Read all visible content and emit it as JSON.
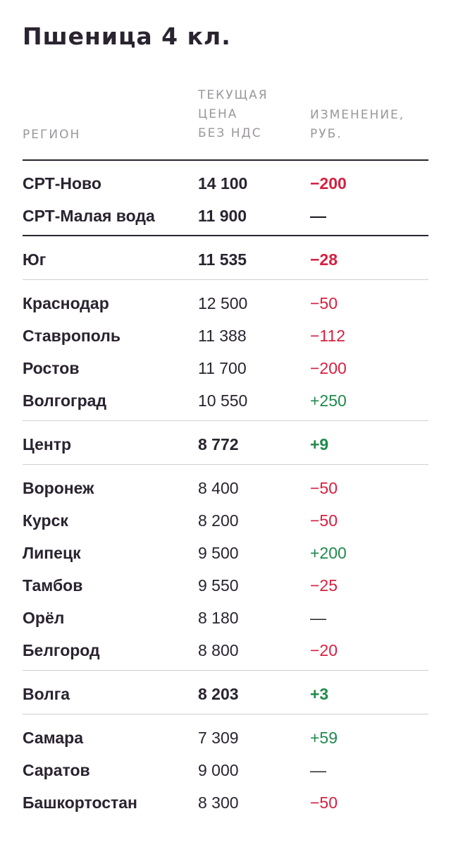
{
  "title": "Пшеница 4 кл.",
  "columns": {
    "region": "РЕГИОН",
    "price_lines": [
      "ТЕКУЩАЯ",
      "ЦЕНА",
      "БЕЗ НДС"
    ],
    "change_lines": [
      "ИЗМЕНЕНИЕ,",
      "РУБ."
    ]
  },
  "rows": [
    {
      "region": "СРТ-Ново",
      "price": "14 100",
      "change": "−200",
      "summary": true,
      "trend": "neg"
    },
    {
      "region": "СРТ-Малая вода",
      "price": "11 900",
      "change": "—",
      "summary": true,
      "trend": "neutral"
    },
    {
      "region": "Юг",
      "price": "11 535",
      "change": "−28",
      "summary": true,
      "trend": "neg"
    },
    {
      "region": "Краснодар",
      "price": "12 500",
      "change": "−50",
      "summary": false,
      "trend": "neg"
    },
    {
      "region": "Ставрополь",
      "price": "11 388",
      "change": "−112",
      "summary": false,
      "trend": "neg"
    },
    {
      "region": "Ростов",
      "price": "11 700",
      "change": "−200",
      "summary": false,
      "trend": "neg"
    },
    {
      "region": "Волгоград",
      "price": "10 550",
      "change": "+250",
      "summary": false,
      "trend": "pos"
    },
    {
      "region": "Центр",
      "price": "8 772",
      "change": "+9",
      "summary": true,
      "trend": "pos"
    },
    {
      "region": "Воронеж",
      "price": "8 400",
      "change": "−50",
      "summary": false,
      "trend": "neg"
    },
    {
      "region": "Курск",
      "price": "8 200",
      "change": "−50",
      "summary": false,
      "trend": "neg"
    },
    {
      "region": "Липецк",
      "price": "9 500",
      "change": "+200",
      "summary": false,
      "trend": "pos"
    },
    {
      "region": "Тамбов",
      "price": "9 550",
      "change": "−25",
      "summary": false,
      "trend": "neg"
    },
    {
      "region": "Орёл",
      "price": "8 180",
      "change": "—",
      "summary": false,
      "trend": "neutral"
    },
    {
      "region": "Белгород",
      "price": "8 800",
      "change": "−20",
      "summary": false,
      "trend": "neg"
    },
    {
      "region": "Волга",
      "price": "8 203",
      "change": "+3",
      "summary": true,
      "trend": "pos"
    },
    {
      "region": "Самара",
      "price": "7 309",
      "change": "+59",
      "summary": false,
      "trend": "pos"
    },
    {
      "region": "Саратов",
      "price": "9 000",
      "change": "—",
      "summary": false,
      "trend": "neutral"
    },
    {
      "region": "Башкортостан",
      "price": "8 300",
      "change": "−50",
      "summary": false,
      "trend": "neg"
    }
  ],
  "colors": {
    "negative": "#d62040",
    "positive": "#1f8a4c",
    "text": "#2a2330",
    "header": "#9a979c"
  }
}
